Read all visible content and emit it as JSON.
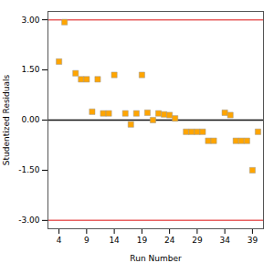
{
  "chart_data": {
    "type": "scatter",
    "x": [
      4,
      5,
      7,
      8,
      9,
      10,
      11,
      12,
      13,
      14,
      16,
      17,
      18,
      19,
      20,
      21,
      22,
      23,
      24,
      25,
      27,
      28,
      29,
      30,
      31,
      32,
      34,
      35,
      36,
      37,
      38,
      39,
      40
    ],
    "values": [
      1.75,
      2.93,
      1.4,
      1.22,
      1.22,
      0.25,
      1.22,
      0.2,
      0.2,
      1.35,
      0.2,
      -0.13,
      0.2,
      1.35,
      0.22,
      0.0,
      0.2,
      0.17,
      0.15,
      0.05,
      -0.35,
      -0.35,
      -0.35,
      -0.35,
      -0.62,
      -0.62,
      0.22,
      0.15,
      -0.62,
      -0.62,
      -0.62,
      -1.5,
      -0.35
    ],
    "color": "#FFA500",
    "marker": "square",
    "xlabel": "Run Number",
    "ylabel": "Studentized Residuals",
    "xlim": [
      2,
      41
    ],
    "ylim": [
      -3.25,
      3.25
    ],
    "xticks": [
      4,
      9,
      14,
      19,
      24,
      29,
      34,
      39
    ],
    "yticks": [
      {
        "value": -3.0,
        "label": "-3.00"
      },
      {
        "value": -1.5,
        "label": "-1.50"
      },
      {
        "value": 0.0,
        "label": "0.00"
      },
      {
        "value": 1.5,
        "label": "1.50"
      },
      {
        "value": 3.0,
        "label": "3.00"
      }
    ],
    "hlines": [
      {
        "y": 3.0,
        "color": "#e86060"
      },
      {
        "y": -3.0,
        "color": "#e86060"
      },
      {
        "y": 0.0,
        "color": "#111111"
      }
    ],
    "grid": false
  }
}
